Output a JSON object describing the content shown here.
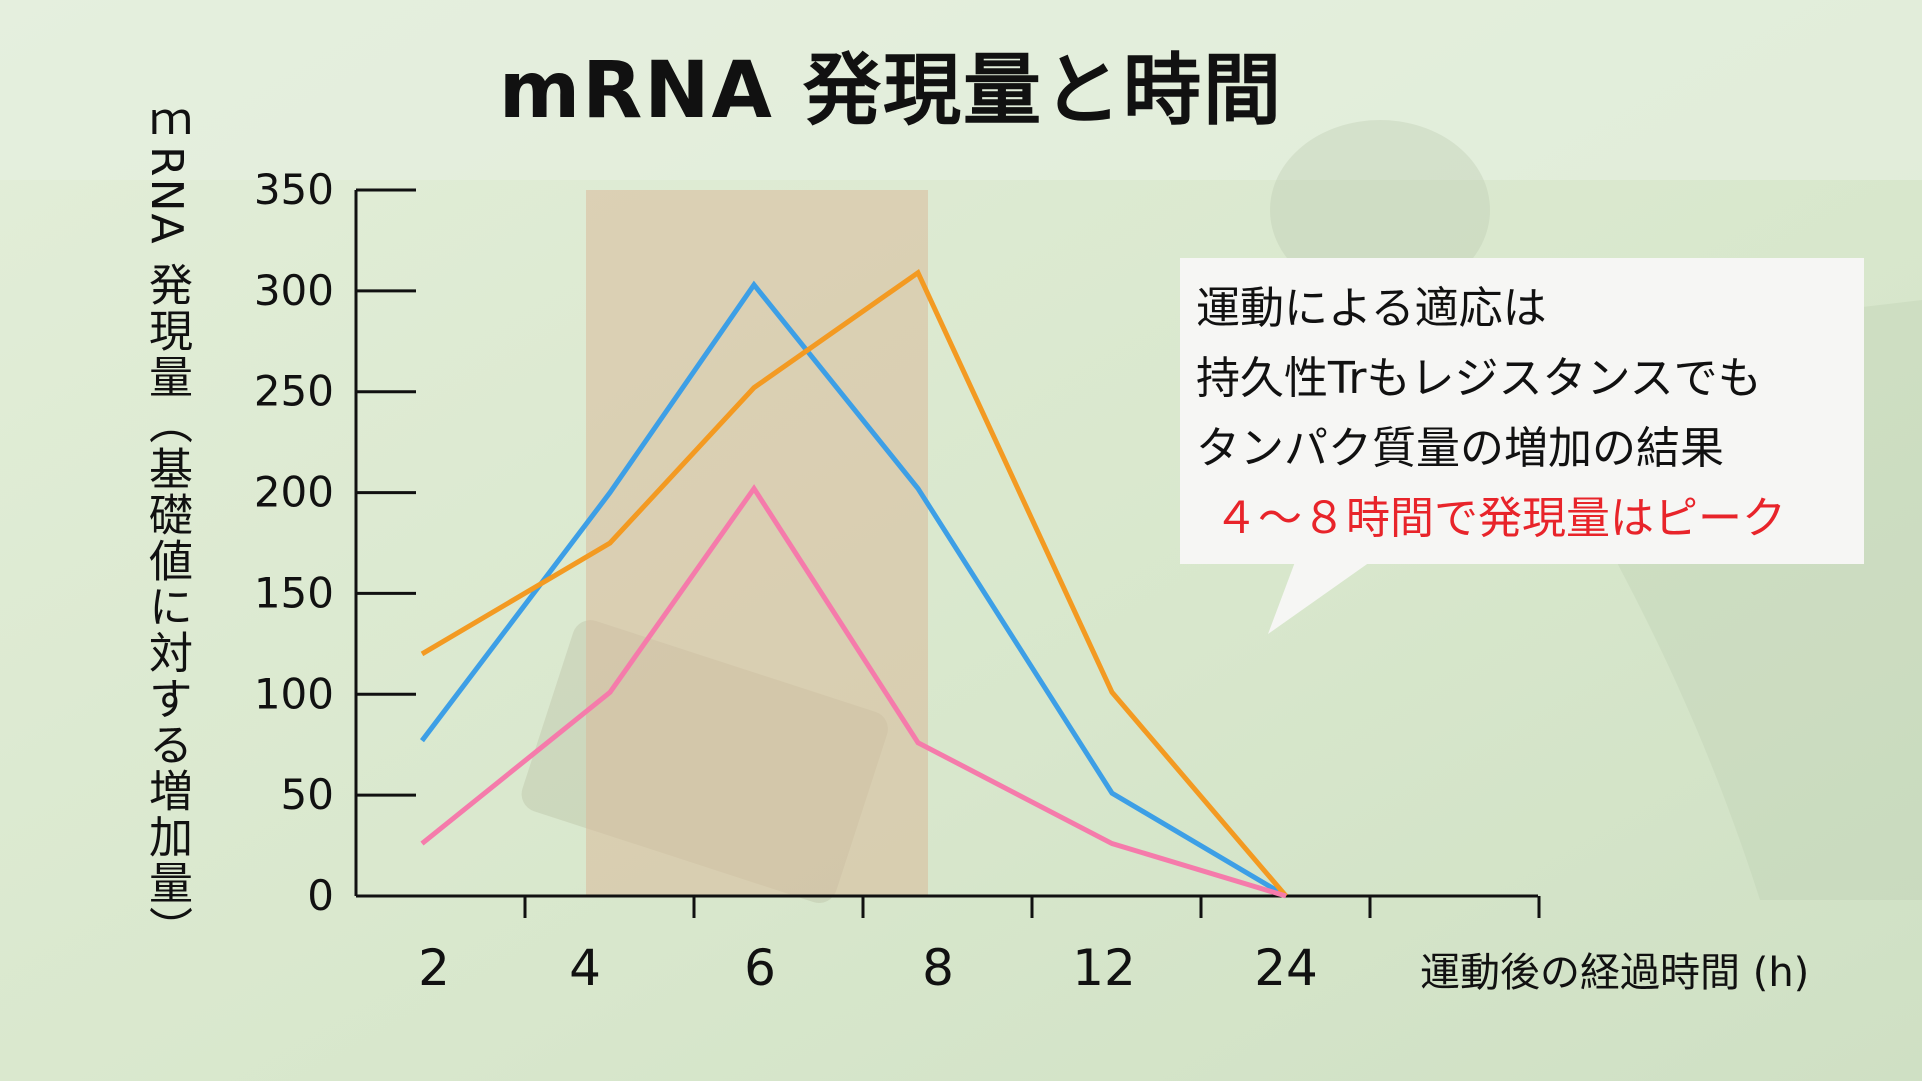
{
  "title": "mRNA 発現量と時間",
  "callout": {
    "lines": [
      "運動による適応は",
      "持久性Trもレジスタンスでも",
      "タンパク質量の増加の結果"
    ],
    "highlight": "４～８時間で発現量はピーク"
  },
  "colors": {
    "blue": "#3d9fe6",
    "orange": "#f39a22",
    "pink": "#f57bab",
    "highlight": "#e8242a",
    "shade": "#d9b99a"
  },
  "chart_data": {
    "type": "line",
    "title": "mRNA 発現量と時間",
    "xlabel": "運動後の経過時間 (h)",
    "ylabel": "ｍRNA 発現量（基礎値に対する増加量）",
    "categories": [
      "2",
      "4",
      "6",
      "8",
      "12",
      "24"
    ],
    "ylim": [
      0,
      350
    ],
    "yticks": [
      "0",
      "50",
      "100",
      "150",
      "200",
      "250",
      "300",
      "350"
    ],
    "shaded_region": [
      "4",
      "8"
    ],
    "series": [
      {
        "color": "blue",
        "values": [
          77,
          200,
          303,
          202,
          51,
          0
        ]
      },
      {
        "color": "orange",
        "values": [
          120,
          175,
          252,
          309,
          101,
          0
        ]
      },
      {
        "color": "pink",
        "values": [
          26,
          101,
          202,
          76,
          26,
          0
        ]
      }
    ]
  }
}
